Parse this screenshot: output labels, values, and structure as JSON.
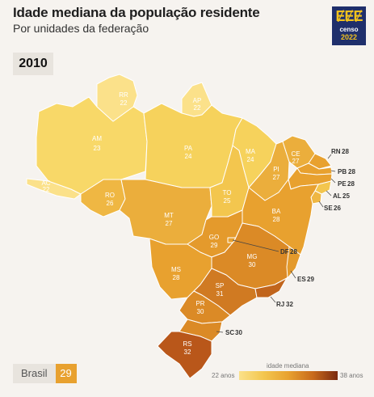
{
  "header": {
    "title": "Idade mediana da população residente",
    "subtitle": "Por unidades da federação",
    "year": "2010"
  },
  "logo": {
    "marks": "ɆɆɆ",
    "line1": "censo",
    "line2": "2022"
  },
  "map": {
    "states": [
      {
        "id": "AC",
        "value": "22",
        "color": "#fbe18a"
      },
      {
        "id": "AM",
        "value": "23",
        "color": "#f8d868"
      },
      {
        "id": "RR",
        "value": "22",
        "color": "#fbe18a"
      },
      {
        "id": "AP",
        "value": "22",
        "color": "#fbe18a"
      },
      {
        "id": "PA",
        "value": "24",
        "color": "#f6d25c"
      },
      {
        "id": "RO",
        "value": "26",
        "color": "#efb743"
      },
      {
        "id": "MT",
        "value": "27",
        "color": "#ebae3c"
      },
      {
        "id": "TO",
        "value": "25",
        "color": "#f3c64e"
      },
      {
        "id": "MA",
        "value": "24",
        "color": "#f6d25c"
      },
      {
        "id": "PI",
        "value": "27",
        "color": "#ebae3c"
      },
      {
        "id": "CE",
        "value": "27",
        "color": "#ebae3c"
      },
      {
        "id": "RN",
        "value": "28",
        "color": "#e8a12f"
      },
      {
        "id": "PB",
        "value": "28",
        "color": "#e8a12f"
      },
      {
        "id": "PE",
        "value": "28",
        "color": "#e8a12f"
      },
      {
        "id": "AL",
        "value": "25",
        "color": "#f3c64e"
      },
      {
        "id": "SE",
        "value": "26",
        "color": "#efb743"
      },
      {
        "id": "BA",
        "value": "28",
        "color": "#e8a12f"
      },
      {
        "id": "GO",
        "value": "29",
        "color": "#e49a2c"
      },
      {
        "id": "DF",
        "value": "28",
        "color": "#e8a12f"
      },
      {
        "id": "MG",
        "value": "30",
        "color": "#db8a26"
      },
      {
        "id": "ES",
        "value": "29",
        "color": "#e49a2c"
      },
      {
        "id": "MS",
        "value": "28",
        "color": "#e8a12f"
      },
      {
        "id": "SP",
        "value": "31",
        "color": "#d07a22"
      },
      {
        "id": "RJ",
        "value": "32",
        "color": "#c1651c"
      },
      {
        "id": "PR",
        "value": "30",
        "color": "#db8a26"
      },
      {
        "id": "SC",
        "value": "30",
        "color": "#db8a26"
      },
      {
        "id": "RS",
        "value": "32",
        "color": "#b9571a"
      }
    ]
  },
  "brasil": {
    "label": "Brasil",
    "value": "29",
    "color": "#e8a12f"
  },
  "legend": {
    "title": "idade mediana",
    "min": "22 anos",
    "max": "38 anos",
    "color_min": "#fbe18a",
    "color_max": "#7a2a10"
  }
}
